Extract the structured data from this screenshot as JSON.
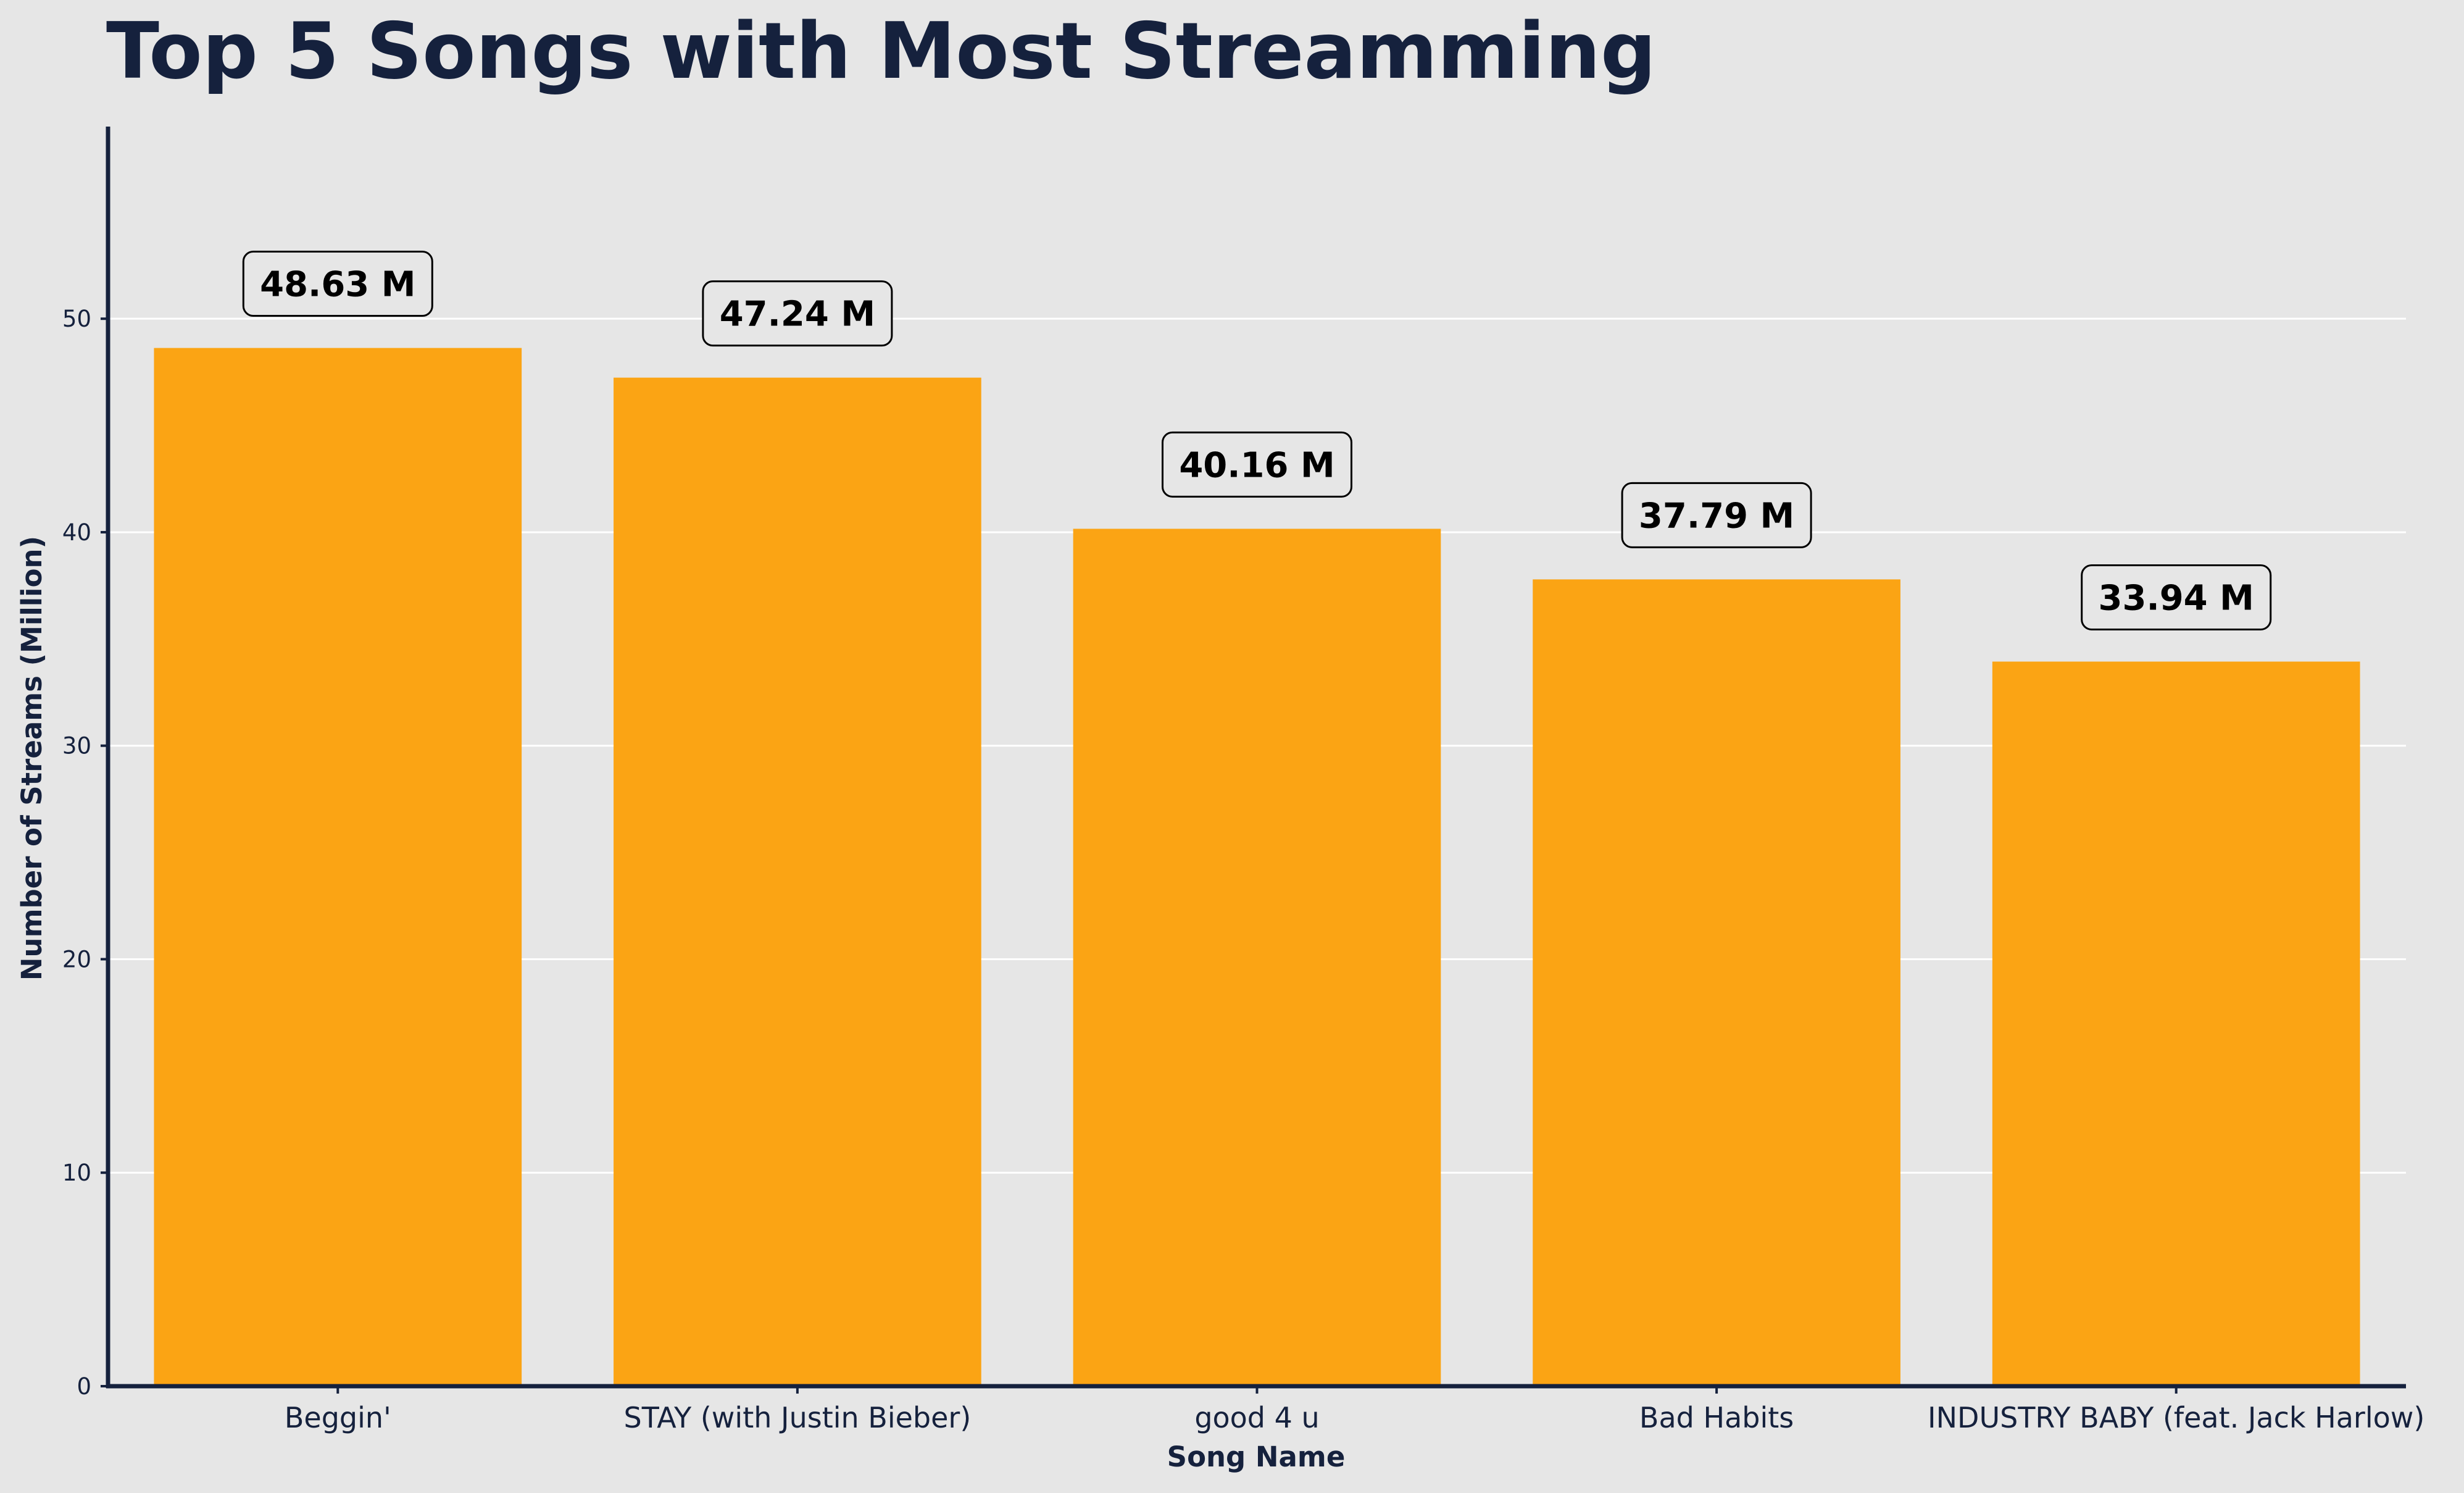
{
  "chart_data": {
    "type": "bar",
    "title": "Top 5 Songs with Most Streamming",
    "xlabel": "Song Name",
    "ylabel": "Number of Streams (Million)",
    "categories": [
      "Beggin'",
      "STAY (with Justin Bieber)",
      "good 4 u",
      "Bad Habits",
      "INDUSTRY BABY (feat. Jack Harlow)"
    ],
    "values": [
      48.63,
      47.24,
      40.16,
      37.79,
      33.94
    ],
    "value_labels": [
      "48.63 M",
      "47.24 M",
      "40.16 M",
      "37.79 M",
      "33.94 M"
    ],
    "ylim": [
      0,
      59
    ],
    "yticks": [
      0,
      10,
      20,
      30,
      40,
      50
    ],
    "grid": "y",
    "colors": {
      "background": "#e6e6e6",
      "bar": "#fba414",
      "text": "#15213d",
      "grid": "#ffffff",
      "label_text": "#000000"
    }
  }
}
